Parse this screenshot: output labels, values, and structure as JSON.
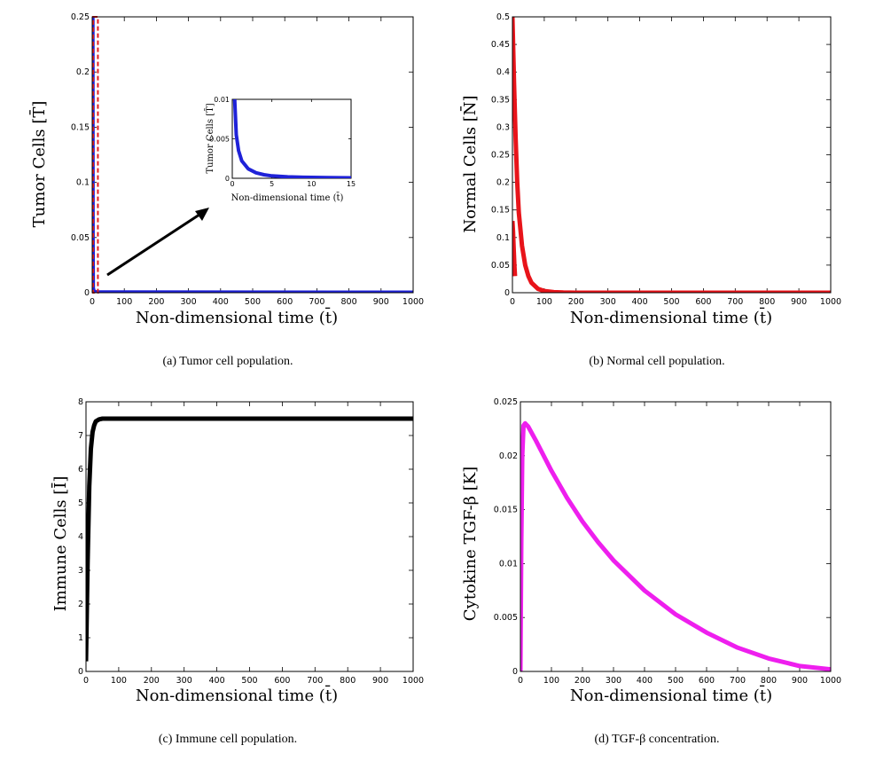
{
  "chart_data": [
    {
      "id": "a",
      "type": "line",
      "caption": "(a) Tumor cell population.",
      "xlabel": "Non-dimensional time (t̄)",
      "ylabel": "Tumor Cells [T̄]",
      "xlim": [
        0,
        1000
      ],
      "ylim": [
        0,
        0.25
      ],
      "xticks": [
        "0",
        "100",
        "200",
        "300",
        "400",
        "500",
        "600",
        "700",
        "800",
        "900",
        "1000"
      ],
      "yticks": [
        "0",
        "0.05",
        "0.1",
        "0.15",
        "0.2",
        "0.25"
      ],
      "series": [
        {
          "color": "#1f22d8",
          "x": [
            0,
            0.5,
            1,
            2,
            5,
            15,
            1000
          ],
          "y": [
            0.25,
            0.25,
            0.05,
            0.004,
            0.0008,
            0.0002,
            0
          ]
        }
      ],
      "highlight": {
        "color": "#e31a1c",
        "x": [
          0,
          15
        ],
        "y": [
          0,
          0.25
        ],
        "style": "dashed"
      },
      "inset": {
        "xlabel": "Non-dimensional time (t̄)",
        "ylabel": "Tumor Cells [T̄]",
        "xlim": [
          0,
          15
        ],
        "ylim": [
          0,
          0.01
        ],
        "xticks": [
          "0",
          "5",
          "10",
          "15"
        ],
        "yticks": [
          "0",
          "0.005",
          "0.01"
        ],
        "series": [
          {
            "color": "#1f22d8",
            "x": [
              0.3,
              0.5,
              0.8,
              1.2,
              2,
              3,
              4,
              5,
              7,
              9,
              12,
              15
            ],
            "y": [
              0.01,
              0.0055,
              0.0035,
              0.0022,
              0.0012,
              0.0007,
              0.00045,
              0.0003,
              0.00018,
              0.00012,
              8e-05,
              6e-05
            ]
          }
        ]
      }
    },
    {
      "id": "b",
      "type": "line",
      "caption": "(b) Normal cell population.",
      "xlabel": "Non-dimensional time (t̄)",
      "ylabel": "Normal Cells [N̄]",
      "xlim": [
        0,
        1000
      ],
      "ylim": [
        0,
        0.5
      ],
      "xticks": [
        "0",
        "100",
        "200",
        "300",
        "400",
        "500",
        "600",
        "700",
        "800",
        "900",
        "1000"
      ],
      "yticks": [
        "0",
        "0.05",
        "0.1",
        "0.15",
        "0.2",
        "0.25",
        "0.3",
        "0.35",
        "0.4",
        "0.45",
        "0.5"
      ],
      "series": [
        {
          "color": "#e8141a",
          "x": [
            0,
            5,
            10,
            15,
            20,
            30,
            40,
            50,
            60,
            80,
            100,
            130,
            160,
            200,
            1000
          ],
          "y": [
            0.5,
            0.38,
            0.28,
            0.2,
            0.145,
            0.085,
            0.05,
            0.03,
            0.018,
            0.007,
            0.003,
            0.001,
            0.0004,
            0,
            0
          ]
        },
        {
          "color": "#e8141a",
          "x": [
            0,
            2,
            4,
            6,
            8
          ],
          "y": [
            0.13,
            0.11,
            0.08,
            0.05,
            0.03
          ]
        }
      ]
    },
    {
      "id": "c",
      "type": "line",
      "caption": "(c) Immune cell population.",
      "xlabel": "Non-dimensional time (t̄)",
      "ylabel": "Immune Cells [Ī]",
      "xlim": [
        0,
        1000
      ],
      "ylim": [
        0,
        8
      ],
      "xticks": [
        "0",
        "100",
        "200",
        "300",
        "400",
        "500",
        "600",
        "700",
        "800",
        "900",
        "1000"
      ],
      "yticks": [
        "0",
        "1",
        "2",
        "3",
        "4",
        "5",
        "6",
        "7",
        "8"
      ],
      "series": [
        {
          "color": "#000000",
          "x": [
            0,
            5,
            10,
            15,
            20,
            25,
            30,
            40,
            50,
            70,
            100,
            1000
          ],
          "y": [
            0.3,
            3.2,
            5.5,
            6.6,
            7.1,
            7.3,
            7.42,
            7.48,
            7.5,
            7.5,
            7.5,
            7.5
          ]
        }
      ]
    },
    {
      "id": "d",
      "type": "line",
      "caption": "(d) TGF-β concentration.",
      "xlabel": "Non-dimensional time (t̄)",
      "ylabel": "Cytokine TGF-β [K]",
      "xlim": [
        0,
        1000
      ],
      "ylim": [
        0,
        0.025
      ],
      "xticks": [
        "0",
        "100",
        "200",
        "300",
        "400",
        "500",
        "600",
        "700",
        "800",
        "900",
        "1000"
      ],
      "yticks": [
        "0",
        "0.005",
        "0.01",
        "0.015",
        "0.02",
        "0.025"
      ],
      "series": [
        {
          "color": "#ee1fee",
          "x": [
            0,
            3,
            6,
            10,
            15,
            25,
            50,
            100,
            150,
            200,
            250,
            300,
            400,
            500,
            600,
            700,
            800,
            900,
            1000
          ],
          "y": [
            0,
            0.012,
            0.02,
            0.0228,
            0.023,
            0.0227,
            0.0214,
            0.0186,
            0.0161,
            0.0139,
            0.012,
            0.0103,
            0.0075,
            0.0053,
            0.0036,
            0.0022,
            0.0012,
            0.0005,
            0.0002
          ]
        }
      ]
    }
  ]
}
